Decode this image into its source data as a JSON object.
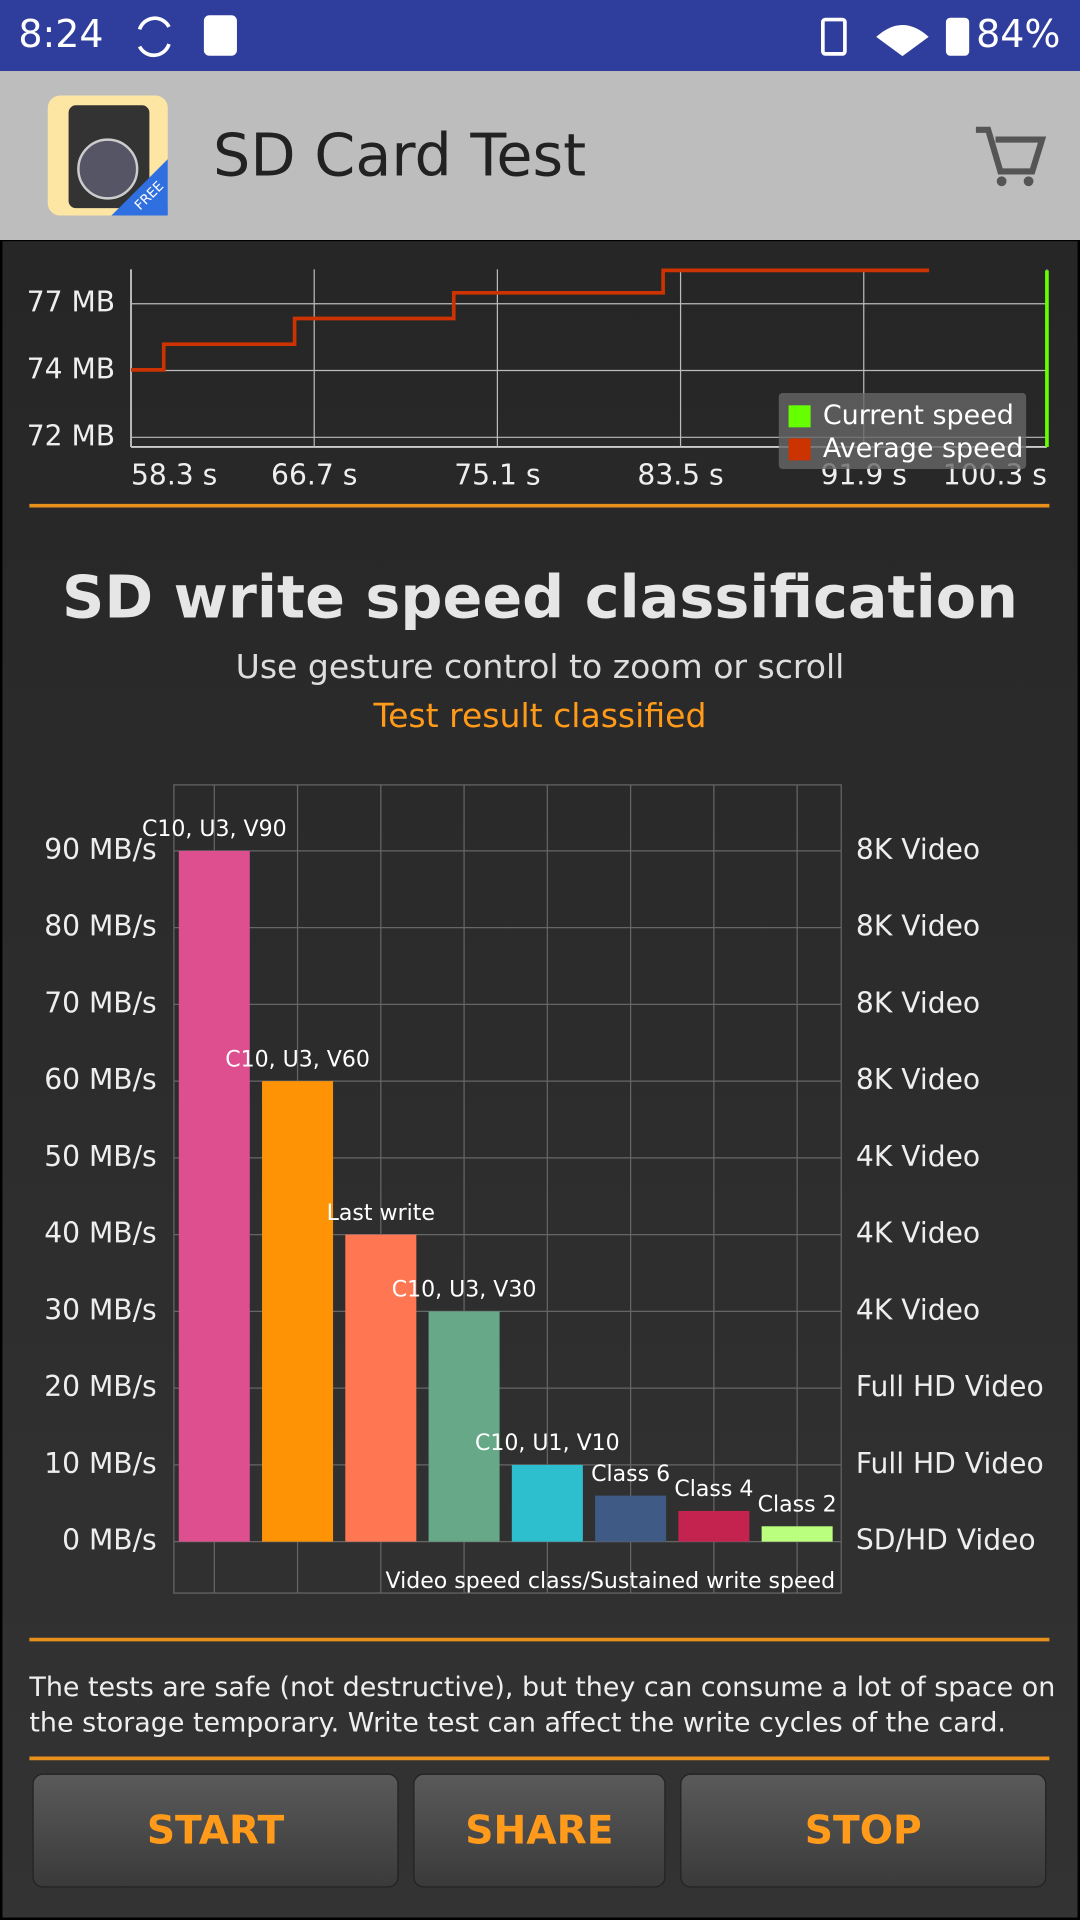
{
  "status_bar": {
    "time": "8:24",
    "battery": "84%"
  },
  "app_bar": {
    "title": "SD Card Test",
    "badge": "FREE"
  },
  "chart_data": [
    {
      "type": "line",
      "x": [
        58.3,
        59.8,
        59.8,
        65.8,
        65.8,
        73.1,
        73.1,
        82.7,
        82.7,
        94.9
      ],
      "series": [
        {
          "name": "Current speed",
          "color": "#66ff00",
          "x": [
            100.3,
            100.3
          ],
          "values": [
            72.1,
            77.6
          ]
        },
        {
          "name": "Average speed",
          "color": "#cc3300",
          "values": [
            74.5,
            74.5,
            75.3,
            75.3,
            76.1,
            76.1,
            76.9,
            76.9,
            77.6,
            77.6
          ]
        }
      ],
      "xlim": [
        58.3,
        100.3
      ],
      "xticks": [
        {
          "value": 58.3,
          "label": "58.3 s"
        },
        {
          "value": 66.7,
          "label": "66.7 s"
        },
        {
          "value": 75.1,
          "label": "75.1 s"
        },
        {
          "value": 83.5,
          "label": "83.5 s"
        },
        {
          "value": 91.9,
          "label": "91.9 s"
        },
        {
          "value": 100.3,
          "label": "100.3 s"
        }
      ],
      "ylim": [
        72.1,
        77.63
      ],
      "yticks": [
        {
          "value": 72.4,
          "label": "72 MB"
        },
        {
          "value": 74.48,
          "label": "74 MB"
        },
        {
          "value": 76.56,
          "label": "77 MB"
        }
      ],
      "grid": true,
      "legend": "lower right"
    },
    {
      "type": "bar",
      "title": "SD write speed classification",
      "subtitle": "Use gesture control to zoom or scroll",
      "annotation": "Test result classified",
      "x_label": "Video speed class/Sustained write speed",
      "categories": [
        "C10, U3, V90",
        "C10, U3, V60",
        "Last write",
        "C10, U3, V30",
        "C10, U1, V10",
        "Class 6",
        "Class 4",
        "Class 2"
      ],
      "values": [
        90,
        60,
        40,
        30,
        10,
        6,
        4,
        2
      ],
      "colors": [
        "#dd4f8e",
        "#ff9306",
        "#ff7752",
        "#66a887",
        "#2ebfcf",
        "#3e5a85",
        "#c4224f",
        "#baff7d"
      ],
      "ylim": [
        -6.7,
        98.6
      ],
      "yticks": [
        {
          "value": 0,
          "label": "0 MB/s"
        },
        {
          "value": 10,
          "label": "10 MB/s"
        },
        {
          "value": 20,
          "label": "20 MB/s"
        },
        {
          "value": 30,
          "label": "30 MB/s"
        },
        {
          "value": 40,
          "label": "40 MB/s"
        },
        {
          "value": 50,
          "label": "50 MB/s"
        },
        {
          "value": 60,
          "label": "60 MB/s"
        },
        {
          "value": 70,
          "label": "70 MB/s"
        },
        {
          "value": 80,
          "label": "80 MB/s"
        },
        {
          "value": 90,
          "label": "90 MB/s"
        }
      ],
      "y2lim": [
        -6.7,
        98.6
      ],
      "y2ticks": [
        {
          "value": 0,
          "label": "SD/HD Video"
        },
        {
          "value": 10,
          "label": "Full HD Video"
        },
        {
          "value": 20,
          "label": "Full HD Video"
        },
        {
          "value": 30,
          "label": "4K Video"
        },
        {
          "value": 40,
          "label": "4K Video"
        },
        {
          "value": 50,
          "label": "4K Video"
        },
        {
          "value": 60,
          "label": "8K Video"
        },
        {
          "value": 70,
          "label": "8K Video"
        },
        {
          "value": 80,
          "label": "8K Video"
        },
        {
          "value": 90,
          "label": "8K Video"
        }
      ],
      "grid": true
    }
  ],
  "notice": [
    "The tests are safe (not destructive), but they can consume a lot of space on",
    "the storage temporary. Write test can affect the write cycles of the card."
  ],
  "buttons": [
    "START",
    "SHARE",
    "STOP"
  ]
}
